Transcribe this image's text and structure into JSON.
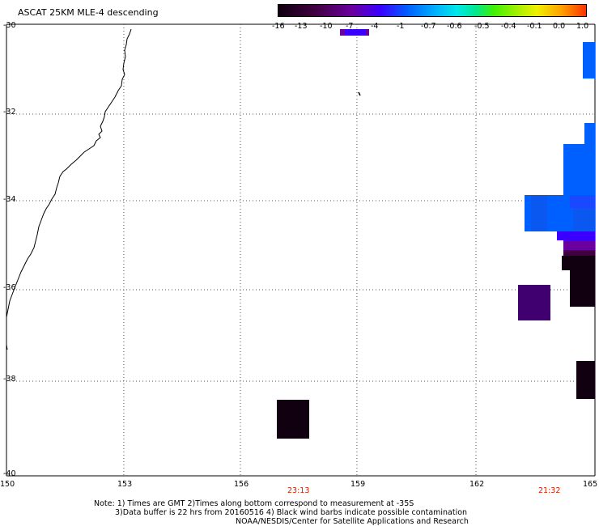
{
  "title": "ASCAT 25KM MLE-4 descending",
  "colorbar": {
    "labels": [
      "-16",
      "-13",
      "-10",
      "-7",
      "-4",
      "-1",
      "-0.7",
      "-0.6",
      "-0.5",
      "-0.4",
      "-0.1",
      "0.0",
      "1.0"
    ],
    "colors": [
      "#100010",
      "#400040",
      "#6a00a0",
      "#3a00ff",
      "#0060ff",
      "#00a8ff",
      "#00e8e8",
      "#00e890",
      "#40f000",
      "#a8f000",
      "#f0f000",
      "#ffa000",
      "#ff3000"
    ]
  },
  "axes": {
    "lat_labels": [
      "-30",
      "-32",
      "-34",
      "-36",
      "-38",
      "-40"
    ],
    "lon_labels": [
      "150",
      "153",
      "156",
      "159",
      "162",
      "165"
    ]
  },
  "pass_times": [
    "23:13",
    "21:32"
  ],
  "notes": [
    "Note: 1) Times are GMT 2)Times along bottom correspond to measurement at -35S",
    "3)Data buffer is 22 hrs from 20160516 4) Black wind barbs indicate possible contamination",
    "NOAA/NESDIS/Center for Satellite Applications and Research"
  ],
  "map_layers": [
    "coastline",
    "graticule"
  ]
}
